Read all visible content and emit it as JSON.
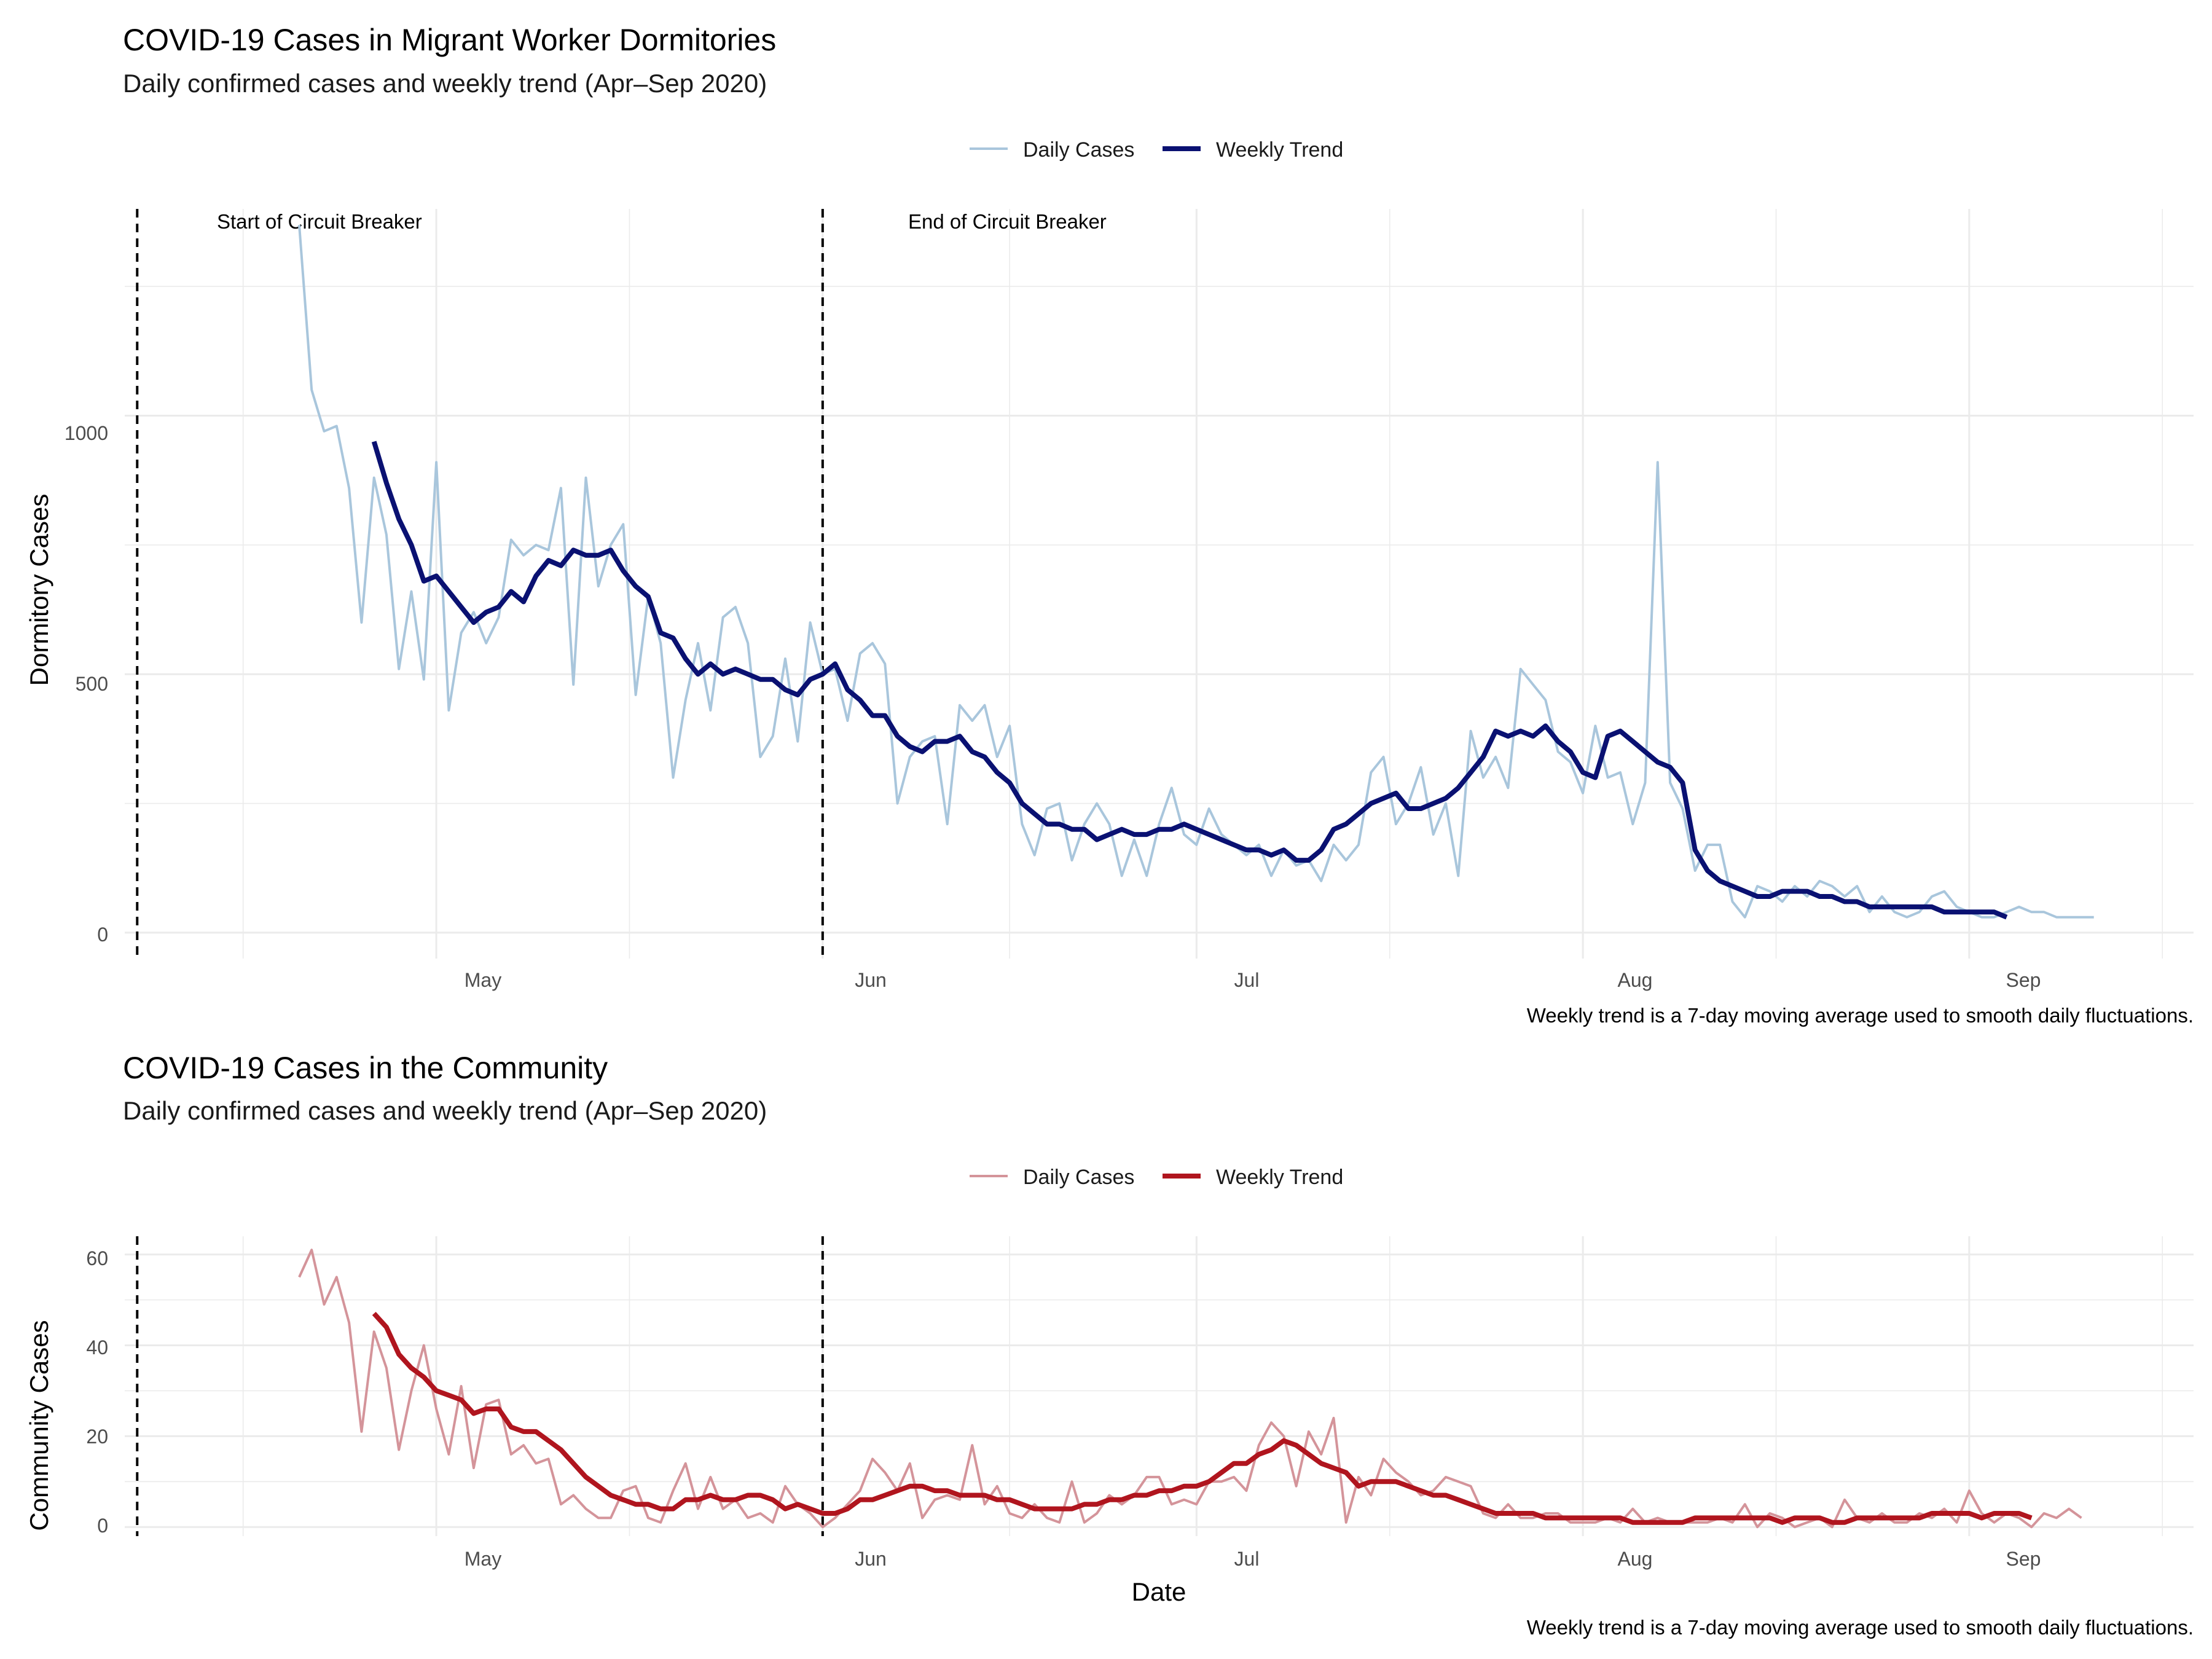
{
  "chart_data": [
    {
      "type": "line",
      "title": "COVID-19 Cases in Migrant Worker Dormitories",
      "subtitle": "Daily confirmed cases and weekly trend (Apr–Sep 2020)",
      "xlabel": "",
      "ylabel": "Dormitory Cases",
      "caption": "Weekly trend is a 7-day moving average used to smooth daily fluctuations.",
      "legend": {
        "position": "top",
        "entries": [
          "Daily Cases",
          "Weekly Trend"
        ]
      },
      "colors": {
        "daily": "#a9c6dc",
        "trend": "#0a1172"
      },
      "xlim": [
        "2020-04-06",
        "2020-09-19"
      ],
      "ylim": [
        -50,
        1400
      ],
      "grid": true,
      "x_ticks": [
        {
          "date": "2020-05-01",
          "label": "May"
        },
        {
          "date": "2020-06-01",
          "label": "Jun"
        },
        {
          "date": "2020-07-01",
          "label": "Jul"
        },
        {
          "date": "2020-08-01",
          "label": "Aug"
        },
        {
          "date": "2020-09-01",
          "label": "Sep"
        }
      ],
      "y_ticks": [
        0,
        500,
        1000
      ],
      "events": [
        {
          "date": "2020-04-07",
          "label": "Start of Circuit Breaker"
        },
        {
          "date": "2020-06-01",
          "label": "End of Circuit Breaker"
        }
      ],
      "series": [
        {
          "name": "Daily Cases",
          "start_date": "2020-04-20",
          "values": [
            1369,
            1050,
            970,
            980,
            860,
            600,
            880,
            770,
            510,
            660,
            490,
            910,
            430,
            580,
            620,
            560,
            610,
            760,
            730,
            750,
            740,
            860,
            480,
            880,
            670,
            750,
            790,
            460,
            650,
            560,
            300,
            450,
            560,
            430,
            610,
            630,
            560,
            340,
            380,
            530,
            370,
            600,
            500,
            510,
            410,
            540,
            560,
            520,
            250,
            340,
            370,
            380,
            210,
            440,
            410,
            440,
            340,
            400,
            210,
            150,
            240,
            250,
            140,
            210,
            250,
            210,
            110,
            180,
            110,
            210,
            280,
            190,
            170,
            240,
            190,
            170,
            150,
            170,
            110,
            160,
            130,
            140,
            100,
            170,
            140,
            170,
            310,
            340,
            210,
            250,
            320,
            190,
            250,
            110,
            390,
            300,
            340,
            280,
            510,
            480,
            450,
            350,
            330,
            270,
            400,
            300,
            310,
            210,
            290,
            910,
            290,
            240,
            120,
            170,
            170,
            60,
            30,
            90,
            80,
            60,
            90,
            70,
            100,
            90,
            70,
            90,
            40,
            70,
            40,
            30,
            40,
            70,
            80,
            50,
            40,
            30,
            30,
            40,
            50,
            40,
            40,
            30,
            30,
            30,
            30
          ],
          "style": "thin"
        },
        {
          "name": "Weekly Trend",
          "start_date": "2020-04-26",
          "values": [
            950,
            870,
            800,
            750,
            680,
            690,
            660,
            630,
            600,
            620,
            630,
            660,
            640,
            690,
            720,
            710,
            740,
            730,
            730,
            740,
            700,
            670,
            650,
            580,
            570,
            530,
            500,
            520,
            500,
            510,
            500,
            490,
            490,
            470,
            460,
            490,
            500,
            520,
            470,
            450,
            420,
            420,
            380,
            360,
            350,
            370,
            370,
            380,
            350,
            340,
            310,
            290,
            250,
            230,
            210,
            210,
            200,
            200,
            180,
            190,
            200,
            190,
            190,
            200,
            200,
            210,
            200,
            190,
            180,
            170,
            160,
            160,
            150,
            160,
            140,
            140,
            160,
            200,
            210,
            230,
            250,
            260,
            270,
            240,
            240,
            250,
            260,
            280,
            310,
            340,
            390,
            380,
            390,
            380,
            400,
            370,
            350,
            310,
            300,
            380,
            390,
            370,
            350,
            330,
            320,
            290,
            160,
            120,
            100,
            90,
            80,
            70,
            70,
            80,
            80,
            80,
            70,
            70,
            60,
            60,
            50,
            50,
            50,
            50,
            50,
            50,
            40,
            40,
            40,
            40,
            40,
            30
          ]
        }
      ]
    },
    {
      "type": "line",
      "title": "COVID-19 Cases in the Community",
      "subtitle": "Daily confirmed cases and weekly trend (Apr–Sep 2020)",
      "xlabel": "Date",
      "ylabel": "Community Cases",
      "caption": "Weekly trend is a 7-day moving average used to smooth daily fluctuations.",
      "legend": {
        "position": "top",
        "entries": [
          "Daily Cases",
          "Weekly Trend"
        ]
      },
      "colors": {
        "daily": "#d4949a",
        "trend": "#b0151e"
      },
      "xlim": [
        "2020-04-06",
        "2020-09-19"
      ],
      "ylim": [
        -2,
        64
      ],
      "grid": true,
      "x_ticks": [
        {
          "date": "2020-05-01",
          "label": "May"
        },
        {
          "date": "2020-06-01",
          "label": "Jun"
        },
        {
          "date": "2020-07-01",
          "label": "Jul"
        },
        {
          "date": "2020-08-01",
          "label": "Aug"
        },
        {
          "date": "2020-09-01",
          "label": "Sep"
        }
      ],
      "y_ticks": [
        0,
        20,
        40,
        60
      ],
      "events": [
        {
          "date": "2020-04-07"
        },
        {
          "date": "2020-06-01"
        }
      ],
      "series": [
        {
          "name": "Daily Cases",
          "start_date": "2020-04-20",
          "values": [
            55,
            61,
            49,
            55,
            45,
            21,
            43,
            35,
            17,
            30,
            40,
            26,
            16,
            31,
            13,
            27,
            28,
            16,
            18,
            14,
            15,
            5,
            7,
            4,
            2,
            2,
            8,
            9,
            2,
            1,
            8,
            14,
            4,
            11,
            4,
            6,
            2,
            3,
            1,
            9,
            5,
            3,
            0,
            2,
            5,
            8,
            15,
            12,
            8,
            14,
            2,
            6,
            7,
            6,
            18,
            5,
            9,
            3,
            2,
            5,
            2,
            1,
            10,
            1,
            3,
            7,
            5,
            7,
            11,
            11,
            5,
            6,
            5,
            10,
            10,
            11,
            8,
            18,
            23,
            20,
            9,
            21,
            16,
            24,
            1,
            11,
            7,
            15,
            12,
            10,
            7,
            8,
            11,
            10,
            9,
            3,
            2,
            5,
            2,
            2,
            3,
            3,
            1,
            1,
            1,
            2,
            1,
            4,
            1,
            2,
            1,
            1,
            1,
            1,
            2,
            1,
            5,
            0,
            3,
            2,
            0,
            1,
            2,
            0,
            6,
            2,
            1,
            3,
            1,
            1,
            3,
            2,
            4,
            1,
            8,
            3,
            1,
            3,
            2,
            0,
            3,
            2,
            4,
            2
          ],
          "style": "thin"
        },
        {
          "name": "Weekly Trend",
          "start_date": "2020-04-26",
          "values": [
            47,
            44,
            38,
            35,
            33,
            30,
            29,
            28,
            25,
            26,
            26,
            22,
            21,
            21,
            19,
            17,
            14,
            11,
            9,
            7,
            6,
            5,
            5,
            4,
            4,
            6,
            6,
            7,
            6,
            6,
            7,
            7,
            6,
            4,
            5,
            4,
            3,
            3,
            4,
            6,
            6,
            7,
            8,
            9,
            9,
            8,
            8,
            7,
            7,
            7,
            6,
            6,
            5,
            4,
            4,
            4,
            4,
            5,
            5,
            6,
            6,
            7,
            7,
            8,
            8,
            9,
            9,
            10,
            12,
            14,
            14,
            16,
            17,
            19,
            18,
            16,
            14,
            13,
            12,
            9,
            10,
            10,
            10,
            9,
            8,
            7,
            7,
            6,
            5,
            4,
            3,
            3,
            3,
            3,
            2,
            2,
            2,
            2,
            2,
            2,
            2,
            1,
            1,
            1,
            1,
            1,
            2,
            2,
            2,
            2,
            2,
            2,
            2,
            1,
            2,
            2,
            2,
            1,
            1,
            2,
            2,
            2,
            2,
            2,
            2,
            3,
            3,
            3,
            3,
            2,
            3,
            3,
            3,
            2
          ]
        }
      ]
    }
  ]
}
